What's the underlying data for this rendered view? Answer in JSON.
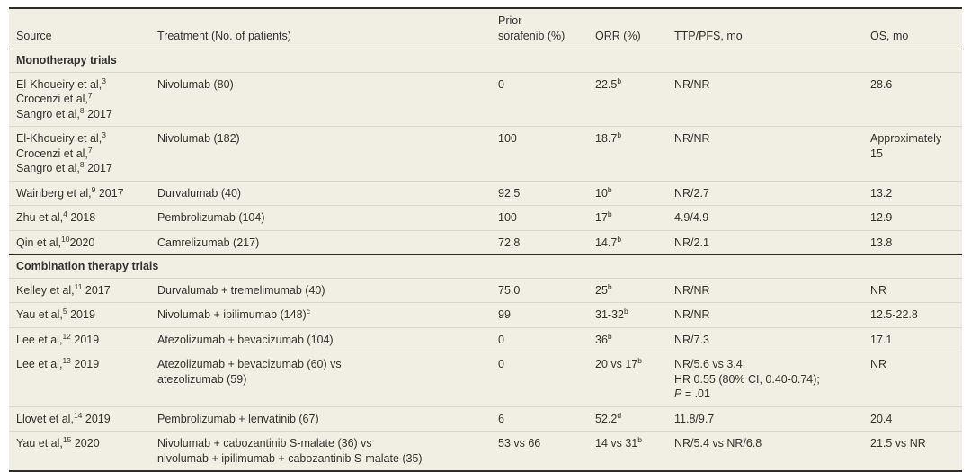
{
  "table": {
    "background_color": "#f1efe4",
    "dark_rule_color": "#2d2c28",
    "divider_color": "#d8d6c9",
    "text_color": "#33322e",
    "columns": [
      {
        "label": "Source"
      },
      {
        "label": "Treatment (No. of patients)"
      },
      {
        "label": "Prior\nsorafenib (%)"
      },
      {
        "label": "ORR (%)"
      },
      {
        "label": "TTP/PFS, mo"
      },
      {
        "label": "OS, mo"
      }
    ],
    "sections": [
      {
        "header": "Monotherapy trials",
        "rows": [
          {
            "source": "El-Khoueiry et al,^3^\nCrocenzi et al,^7^\nSangro et al,^8^ 2017",
            "treatment": "Nivolumab (80)",
            "prior_sorafenib": "0",
            "orr": "22.5^b^",
            "ttp_pfs": "NR/NR",
            "os": "28.6"
          },
          {
            "source": "El-Khoueiry et al,^3^\nCrocenzi et al,^7^\nSangro et al,^8^ 2017",
            "treatment": "Nivolumab (182)",
            "prior_sorafenib": "100",
            "orr": "18.7^b^",
            "ttp_pfs": "NR/NR",
            "os": "Approximately 15"
          },
          {
            "source": "Wainberg et al,^9^ 2017",
            "treatment": "Durvalumab (40)",
            "prior_sorafenib": "92.5",
            "orr": "10^b^",
            "ttp_pfs": "NR/2.7",
            "os": "13.2"
          },
          {
            "source": "Zhu et al,^4^ 2018",
            "treatment": "Pembrolizumab (104)",
            "prior_sorafenib": "100",
            "orr": "17^b^",
            "ttp_pfs": "4.9/4.9",
            "os": "12.9"
          },
          {
            "source": "Qin et al,^10^2020",
            "treatment": "Camrelizumab (217)",
            "prior_sorafenib": "72.8",
            "orr": "14.7^b^",
            "ttp_pfs": "NR/2.1",
            "os": "13.8"
          }
        ]
      },
      {
        "header": "Combination therapy trials",
        "rows": [
          {
            "source": "Kelley et al,^11^ 2017",
            "treatment": "Durvalumab + tremelimumab (40)",
            "prior_sorafenib": "75.0",
            "orr": "25^b^",
            "ttp_pfs": "NR/NR",
            "os": "NR"
          },
          {
            "source": "Yau et al,^5^ 2019",
            "treatment": "Nivolumab + ipilimumab (148)^c^",
            "prior_sorafenib": "99",
            "orr": "31-32^b^",
            "ttp_pfs": "NR/NR",
            "os": "12.5-22.8"
          },
          {
            "source": "Lee et al,^12^ 2019",
            "treatment": "Atezolizumab + bevacizumab (104)",
            "prior_sorafenib": "0",
            "orr": "36^b^",
            "ttp_pfs": "NR/7.3",
            "os": "17.1"
          },
          {
            "source": "Lee et al,^13^ 2019",
            "treatment": "Atezolizumab + bevacizumab (60) vs\natezolizumab (59)",
            "prior_sorafenib": "0",
            "orr": "20 vs 17^b^",
            "ttp_pfs": "NR/5.6 vs 3.4;\nHR 0.55 (80% CI, 0.40-0.74);\n~P~ = .01",
            "os": "NR"
          },
          {
            "source": "Llovet et al,^14^ 2019",
            "treatment": "Pembrolizumab + lenvatinib (67)",
            "prior_sorafenib": "6",
            "orr": "52.2^d^",
            "ttp_pfs": "11.8/9.7",
            "os": "20.4"
          },
          {
            "source": "Yau et al,^15^ 2020",
            "treatment": "Nivolumab + cabozantinib S-malate (36) vs\nnivolumab + ipilimumab + cabozantinib S-malate (35)",
            "prior_sorafenib": "53 vs 66",
            "orr": "14 vs 31^b^",
            "ttp_pfs": "NR/5.4 vs NR/6.8",
            "os": "21.5 vs NR"
          }
        ]
      }
    ]
  }
}
